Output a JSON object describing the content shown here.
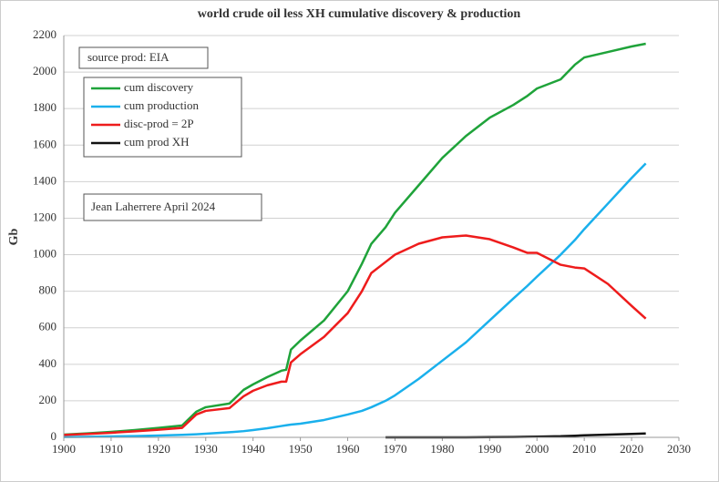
{
  "chart_data": {
    "type": "line",
    "title": "world crude oil less XH cumulative discovery & production",
    "y_label": "Gb",
    "annotations": [
      "source prod: EIA",
      "Jean Laherrere April 2024"
    ],
    "x": [
      1900,
      1905,
      1910,
      1915,
      1920,
      1925,
      1928,
      1930,
      1935,
      1938,
      1940,
      1943,
      1946,
      1947,
      1948,
      1950,
      1955,
      1960,
      1963,
      1965,
      1968,
      1970,
      1975,
      1980,
      1985,
      1990,
      1995,
      1998,
      2000,
      2005,
      2008,
      2010,
      2015,
      2020,
      2023
    ],
    "series": [
      {
        "name": "cum discovery",
        "color": "#1fa33a",
        "values": [
          15,
          22,
          30,
          40,
          52,
          65,
          140,
          165,
          185,
          260,
          290,
          330,
          365,
          370,
          480,
          530,
          640,
          800,
          950,
          1060,
          1150,
          1230,
          1380,
          1530,
          1650,
          1750,
          1820,
          1870,
          1910,
          1960,
          2040,
          2080,
          2110,
          2140,
          2155
        ]
      },
      {
        "name": "cum production",
        "color": "#1ab0ec",
        "values": [
          2,
          3,
          5,
          7,
          10,
          14,
          17,
          20,
          28,
          34,
          40,
          50,
          62,
          66,
          70,
          75,
          95,
          125,
          145,
          165,
          200,
          230,
          320,
          420,
          520,
          640,
          760,
          830,
          880,
          1000,
          1080,
          1140,
          1280,
          1420,
          1500
        ]
      },
      {
        "name": "disc-prod = 2P",
        "color": "#ee1c1c",
        "values": [
          13,
          19,
          25,
          33,
          42,
          52,
          125,
          145,
          160,
          225,
          255,
          285,
          305,
          305,
          410,
          455,
          550,
          680,
          800,
          900,
          960,
          1000,
          1060,
          1095,
          1105,
          1085,
          1040,
          1010,
          1010,
          945,
          930,
          925,
          840,
          720,
          650
        ]
      },
      {
        "name": "cum prod XH",
        "color": "#111111",
        "values": [
          null,
          null,
          null,
          null,
          null,
          null,
          null,
          null,
          null,
          null,
          null,
          null,
          null,
          null,
          null,
          null,
          null,
          null,
          null,
          null,
          0,
          0,
          0,
          0,
          0,
          1,
          2,
          3,
          4,
          6,
          9,
          11,
          15,
          19,
          21
        ]
      }
    ],
    "xlim": [
      1900,
      2030
    ],
    "xticks": [
      1900,
      1910,
      1920,
      1930,
      1940,
      1950,
      1960,
      1970,
      1980,
      1990,
      2000,
      2010,
      2020,
      2030
    ],
    "ylim": [
      0,
      2200
    ],
    "yticks": [
      0,
      200,
      400,
      600,
      800,
      1000,
      1200,
      1400,
      1600,
      1800,
      2000,
      2200
    ],
    "grid": true
  }
}
